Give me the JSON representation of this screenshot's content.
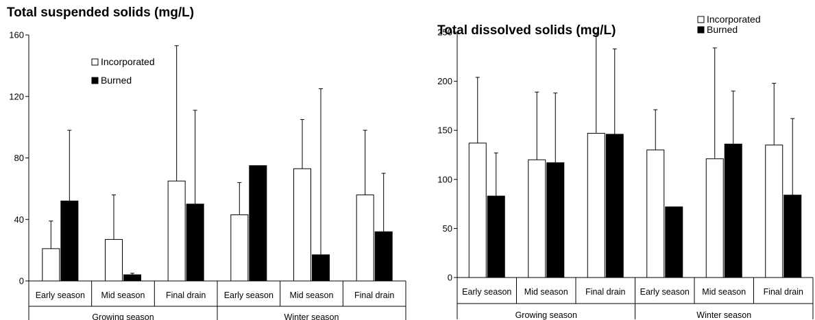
{
  "chart_data": [
    {
      "type": "bar",
      "title": "Total suspended solids (mg/L)",
      "ylim": [
        0,
        160
      ],
      "yticks": [
        0,
        40,
        80,
        120,
        160
      ],
      "categories": [
        "Early season",
        "Mid season",
        "Final drain",
        "Early season",
        "Mid season",
        "Final drain"
      ],
      "groups": [
        {
          "label": "Growing season",
          "categories": [
            0,
            1,
            2
          ]
        },
        {
          "label": "Winter season",
          "categories": [
            3,
            4,
            5
          ]
        }
      ],
      "series": [
        {
          "name": "Incorporated",
          "color": "#ffffff",
          "values": [
            21,
            27,
            65,
            43,
            73,
            56
          ],
          "error": [
            18,
            29,
            88,
            21,
            32,
            42
          ]
        },
        {
          "name": "Burned",
          "color": "#000000",
          "values": [
            52,
            4,
            50,
            75,
            17,
            32
          ],
          "error": [
            46,
            1,
            61,
            0,
            108,
            38
          ]
        }
      ],
      "legend": {
        "position": "top-center"
      },
      "grid": false
    },
    {
      "type": "bar",
      "title": "Total dissolved solids (mg/L)",
      "ylim": [
        0,
        250
      ],
      "yticks": [
        0,
        50,
        100,
        150,
        200,
        250
      ],
      "categories": [
        "Early season",
        "Mid season",
        "Final drain",
        "Early season",
        "Mid season",
        "Final drain"
      ],
      "groups": [
        {
          "label": "Growing season",
          "categories": [
            0,
            1,
            2
          ]
        },
        {
          "label": "Winter season",
          "categories": [
            3,
            4,
            5
          ]
        }
      ],
      "series": [
        {
          "name": "Incorporated",
          "color": "#ffffff",
          "values": [
            137,
            120,
            147,
            130,
            121,
            135
          ],
          "error": [
            67,
            69,
            101,
            41,
            113,
            63
          ]
        },
        {
          "name": "Burned",
          "color": "#000000",
          "values": [
            83,
            117,
            146,
            72,
            136,
            84
          ],
          "error": [
            44,
            71,
            87,
            0,
            54,
            78
          ]
        }
      ],
      "legend": {
        "position": "top-left"
      },
      "grid": false
    }
  ]
}
